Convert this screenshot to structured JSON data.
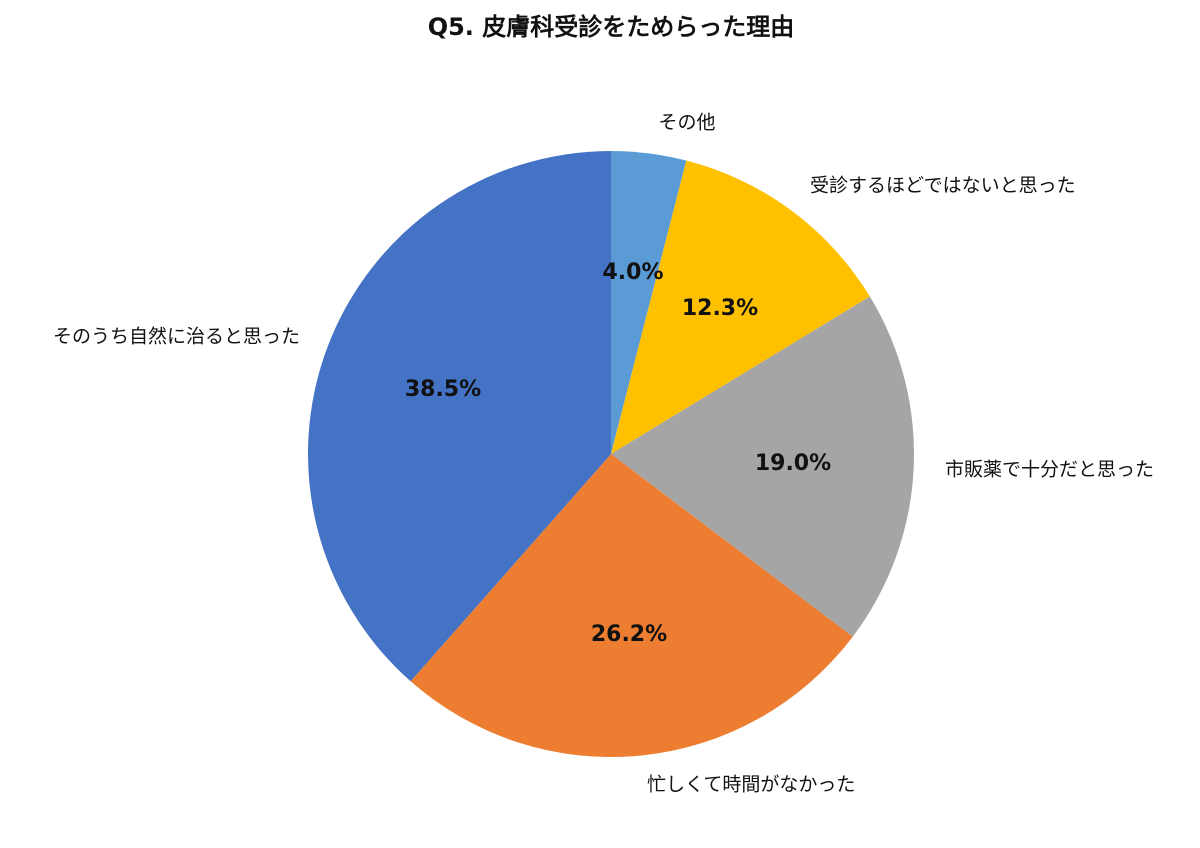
{
  "chart_data": {
    "type": "pie",
    "title": "Q5. 皮膚科受診をためらった理由",
    "categories": [
      "その他",
      "受診するほどではないと思った",
      "市販薬で十分だと思った",
      "忙しくて時間がなかった",
      "そのうち自然に治ると思った"
    ],
    "values": [
      4.0,
      12.3,
      19.0,
      26.2,
      38.5
    ],
    "value_labels": [
      "4.0%",
      "12.3%",
      "19.0%",
      "26.2%",
      "38.5%"
    ],
    "colors": [
      "#5b9bd5",
      "#ffc000",
      "#a5a5a5",
      "#ed7d31",
      "#4472c4"
    ]
  }
}
